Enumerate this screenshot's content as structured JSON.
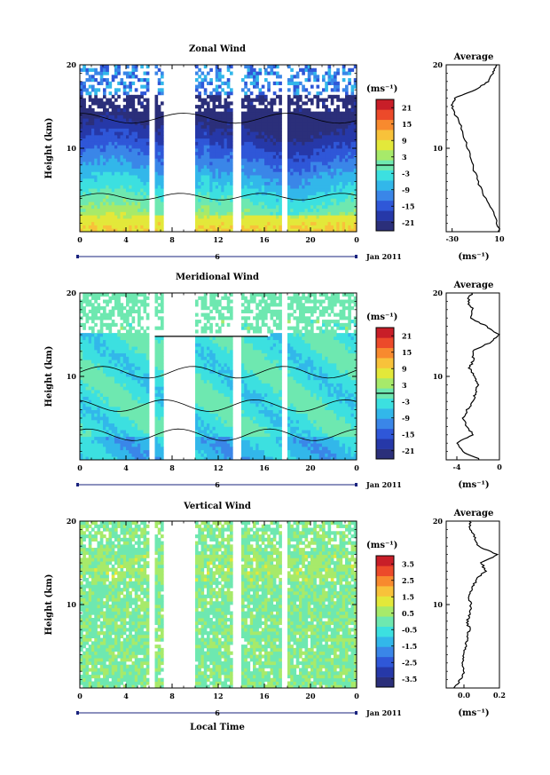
{
  "figure": {
    "xlabel": "Local Time",
    "date_label": "6",
    "month_label": "Jan 2011",
    "yaxis_label": "Height (km)",
    "units": "(ms⁻¹)",
    "avg_title": "Average"
  },
  "colors": {
    "palette": [
      "#2b2f7a",
      "#2638a8",
      "#2f57d8",
      "#3a86e8",
      "#32b7ea",
      "#3ce0e0",
      "#6ee8b0",
      "#a7ea6a",
      "#e3e83a",
      "#f8c23a",
      "#f88a2e",
      "#ec4a2a",
      "#c81e28"
    ],
    "gap": "#ffffff"
  },
  "chart_data": [
    {
      "type": "heatmap",
      "title": "Zonal Wind",
      "x_ticks": [
        "0",
        "4",
        "8",
        "12",
        "16",
        "20",
        "0"
      ],
      "y_ticks": [
        "20",
        "10"
      ],
      "xlim": [
        0,
        24
      ],
      "ylim": [
        0,
        20
      ],
      "colorbar_ticks": [
        "21",
        "15",
        "9",
        "3",
        "-3",
        "-9",
        "-15",
        "-21"
      ],
      "colorbar_range": [
        -24,
        24
      ],
      "colorbar_zero_line": true,
      "avg": {
        "title": "Average",
        "x_ticks": [
          "-30",
          "10"
        ],
        "y_ticks": [
          "20",
          "10"
        ],
        "xlim": [
          -35,
          10
        ],
        "xlabel": "(ms⁻¹)",
        "profile_height": [
          0,
          2,
          4,
          6,
          8,
          10,
          12,
          14,
          15,
          16,
          17,
          18,
          19,
          20
        ],
        "profile_value": [
          10,
          6,
          -2,
          -8,
          -13,
          -17,
          -21,
          -27,
          -30,
          -28,
          -10,
          0,
          4,
          8
        ]
      }
    },
    {
      "type": "heatmap",
      "title": "Meridional Wind",
      "x_ticks": [
        "0",
        "4",
        "8",
        "12",
        "16",
        "20",
        "0"
      ],
      "y_ticks": [
        "20",
        "10"
      ],
      "xlim": [
        0,
        24
      ],
      "ylim": [
        0,
        20
      ],
      "colorbar_ticks": [
        "21",
        "15",
        "9",
        "3",
        "-3",
        "-9",
        "-15",
        "-21"
      ],
      "colorbar_range": [
        -24,
        24
      ],
      "colorbar_zero_line": true,
      "avg": {
        "title": "Average",
        "x_ticks": [
          "-4",
          "0"
        ],
        "y_ticks": [
          "20",
          "10"
        ],
        "xlim": [
          -5,
          0
        ],
        "xlabel": "(ms⁻¹)",
        "profile_height": [
          0,
          1,
          2,
          3,
          4,
          5,
          6,
          7,
          8,
          9,
          10,
          11,
          12,
          13,
          14,
          15,
          16,
          17,
          18,
          19,
          20
        ],
        "profile_value": [
          -1.8,
          -3.5,
          -4.0,
          -2.5,
          -3.0,
          -3.5,
          -3.0,
          -2.5,
          -2.2,
          -2.0,
          -2.3,
          -2.8,
          -2.4,
          -2.6,
          -1.0,
          -0.1,
          -1.2,
          -2.8,
          -2.5,
          -3.0,
          -2.6
        ]
      }
    },
    {
      "type": "heatmap",
      "title": "Vertical Wind",
      "x_ticks": [
        "0",
        "4",
        "8",
        "12",
        "16",
        "20",
        "0"
      ],
      "y_ticks": [
        "20",
        "10"
      ],
      "xlim": [
        0,
        24
      ],
      "ylim": [
        0,
        20
      ],
      "colorbar_ticks": [
        "3.5",
        "2.5",
        "1.5",
        "0.5",
        "-0.5",
        "-1.5",
        "-2.5",
        "-3.5"
      ],
      "colorbar_range": [
        -4,
        4
      ],
      "colorbar_zero_line": false,
      "avg": {
        "title": "Average",
        "x_ticks": [
          "0.0",
          "0.2"
        ],
        "y_ticks": [
          "20",
          "10"
        ],
        "xlim": [
          -0.1,
          0.2
        ],
        "xlabel": "(ms⁻¹)",
        "profile_height": [
          0,
          1,
          2,
          3,
          4,
          5,
          6,
          7,
          8,
          9,
          10,
          11,
          12,
          13,
          14,
          15,
          16,
          17,
          18,
          19,
          20
        ],
        "profile_value": [
          -0.05,
          -0.02,
          0.0,
          -0.01,
          0.0,
          0.01,
          0.02,
          0.03,
          0.02,
          0.03,
          0.04,
          0.03,
          0.05,
          0.07,
          0.12,
          0.1,
          0.19,
          0.08,
          0.06,
          0.04,
          0.03
        ]
      }
    }
  ]
}
